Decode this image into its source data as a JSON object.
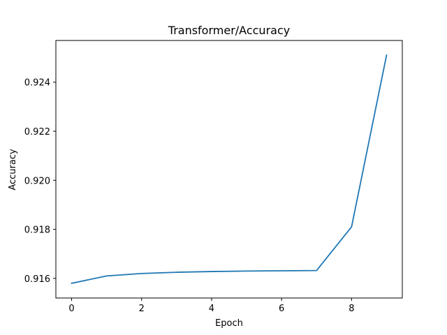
{
  "chart_data": {
    "type": "line",
    "title": "Transformer/Accuracy",
    "xlabel": "Epoch",
    "ylabel": "Accuracy",
    "xlim": [
      -0.45,
      9.45
    ],
    "ylim": [
      0.9152,
      0.9257
    ],
    "x_ticks": [
      0,
      2,
      4,
      6,
      8
    ],
    "x_tick_labels": [
      "0",
      "2",
      "4",
      "6",
      "8"
    ],
    "y_ticks": [
      0.916,
      0.918,
      0.92,
      0.922,
      0.924
    ],
    "y_tick_labels": [
      "0.916",
      "0.918",
      "0.920",
      "0.922",
      "0.924"
    ],
    "grid": false,
    "series": [
      {
        "color": "#1f77b4",
        "x": [
          0,
          1,
          2,
          3,
          4,
          5,
          6,
          7,
          8,
          9
        ],
        "values": [
          0.9158,
          0.9161,
          0.9162,
          0.91625,
          0.91628,
          0.9163,
          0.91631,
          0.91632,
          0.9181,
          0.9251
        ]
      }
    ]
  }
}
